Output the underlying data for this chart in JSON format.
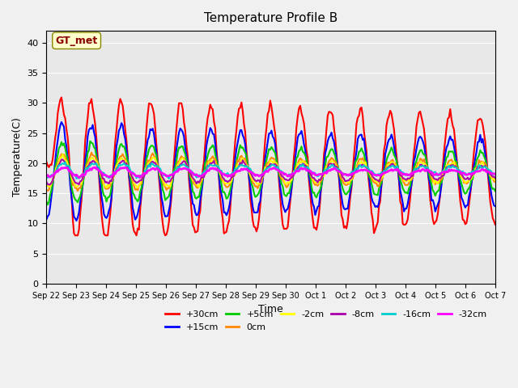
{
  "title": "Temperature Profile B",
  "xlabel": "Time",
  "ylabel": "Temperature(C)",
  "ylim": [
    0,
    42
  ],
  "yticks": [
    0,
    5,
    10,
    15,
    20,
    25,
    30,
    35,
    40
  ],
  "background_color": "#e8e8e8",
  "plot_bg_color": "#e8e8e8",
  "annotation_text": "GT_met",
  "annotation_color": "#8B0000",
  "annotation_bg": "#ffffcc",
  "series": [
    {
      "label": "+30cm",
      "color": "#ff0000",
      "lw": 1.5
    },
    {
      "label": "+15cm",
      "color": "#0000ff",
      "lw": 1.5
    },
    {
      "label": "+5cm",
      "color": "#00cc00",
      "lw": 1.5
    },
    {
      "label": "0cm",
      "color": "#ff8800",
      "lw": 1.5
    },
    {
      "label": "-2cm",
      "color": "#ffff00",
      "lw": 1.5
    },
    {
      "label": "-8cm",
      "color": "#aa00aa",
      "lw": 1.5
    },
    {
      "label": "-16cm",
      "color": "#00cccc",
      "lw": 1.5
    },
    {
      "label": "-32cm",
      "color": "#ff00ff",
      "lw": 2.0
    }
  ],
  "x_tick_labels": [
    "Sep 22",
    "Sep 23",
    "Sep 24",
    "Sep 25",
    "Sep 26",
    "Sep 27",
    "Sep 28",
    "Sep 29",
    "Sep 30",
    "Oct 1",
    "Oct 2",
    "Oct 3",
    "Oct 4",
    "Oct 5",
    "Oct 6",
    "Oct 7"
  ],
  "n_days": 15,
  "pts_per_day": 24
}
